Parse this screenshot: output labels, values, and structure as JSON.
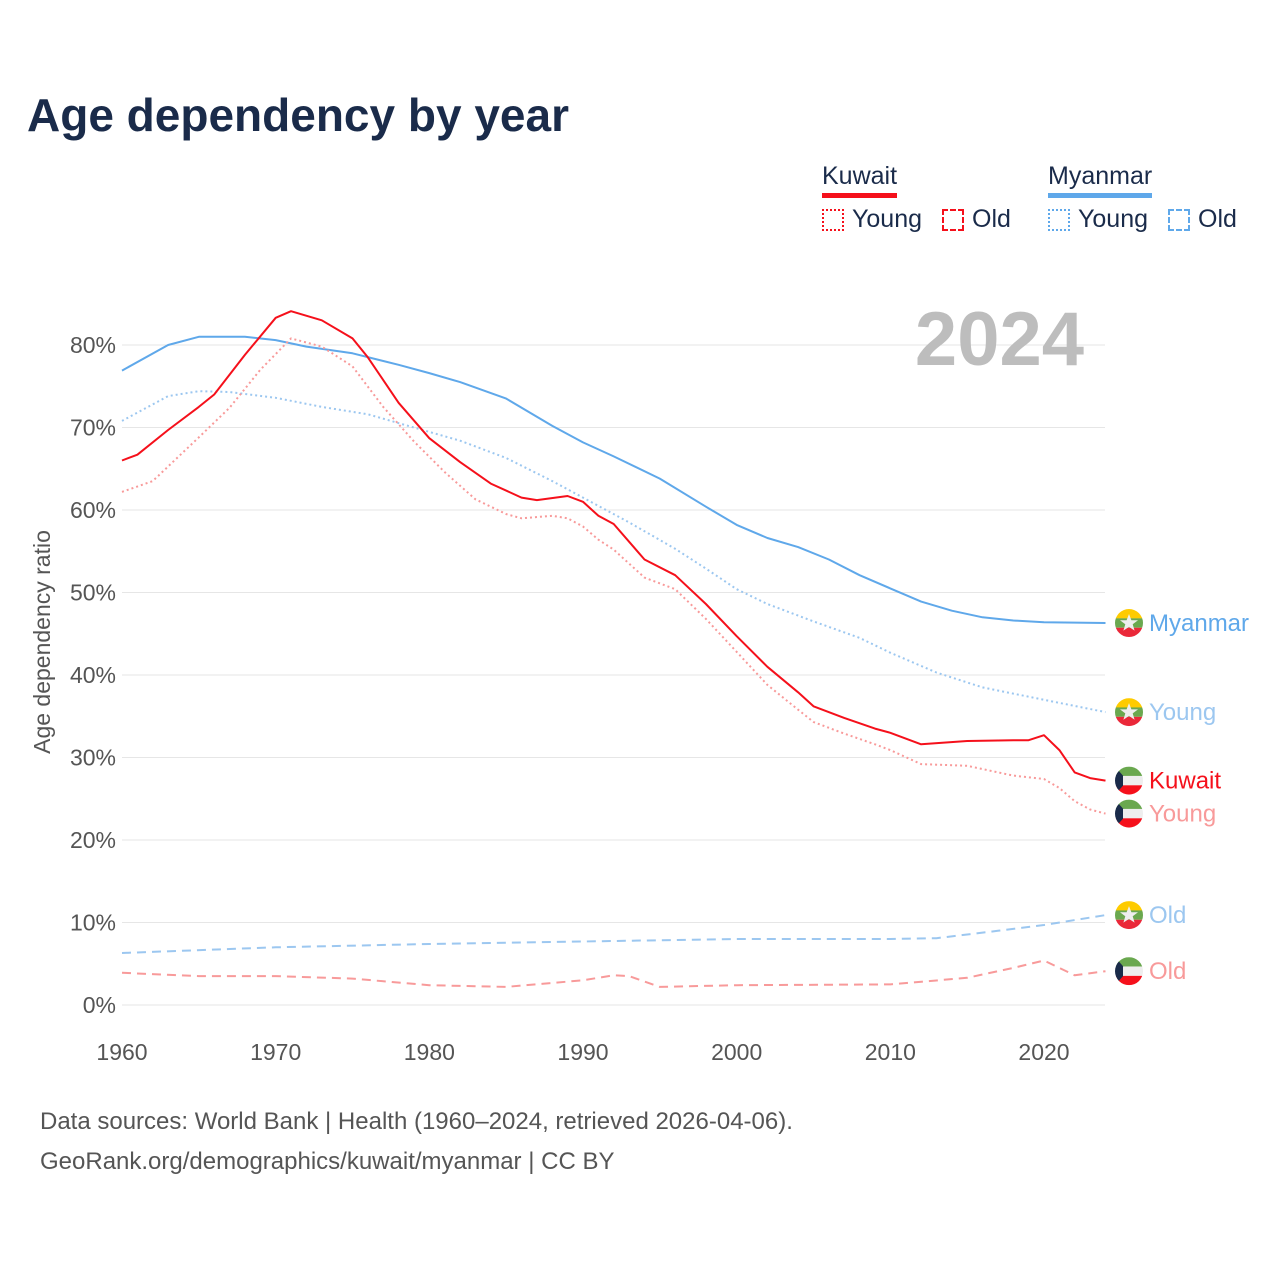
{
  "title": "Age dependency by year",
  "year_display": "2024",
  "legend": {
    "countries": [
      {
        "name": "Kuwait",
        "color": "#f5101b",
        "young_color": "#f5101b",
        "items": [
          "Young",
          "Old"
        ]
      },
      {
        "name": "Myanmar",
        "color": "#5fa8ea",
        "young_color": "#5fa8ea",
        "items": [
          "Young",
          "Old"
        ]
      }
    ]
  },
  "footer": {
    "line1": "Data sources: World Bank | Health (1960–2024, retrieved 2026-04-06).",
    "line2": "GeoRank.org/demographics/kuwait/myanmar | CC BY"
  },
  "chart_data": {
    "type": "line",
    "title": "Age dependency by year",
    "xlabel": "",
    "ylabel": "Age dependency ratio",
    "xlim": [
      1960,
      2024
    ],
    "ylim": [
      0,
      85
    ],
    "x_ticks": [
      1960,
      1970,
      1980,
      1990,
      2000,
      2010,
      2020
    ],
    "y_ticks": [
      0,
      10,
      20,
      30,
      40,
      50,
      60,
      70,
      80
    ],
    "y_tick_labels": [
      "0%",
      "10%",
      "20%",
      "30%",
      "40%",
      "50%",
      "60%",
      "70%",
      "80%"
    ],
    "grid": true,
    "series": [
      {
        "name": "Myanmar",
        "label": "Myanmar",
        "country": "Myanmar",
        "style": "solid",
        "color": "#5fa8ea",
        "x": [
          1960,
          1963,
          1965,
          1968,
          1970,
          1972,
          1975,
          1978,
          1980,
          1982,
          1985,
          1988,
          1990,
          1992,
          1995,
          1998,
          2000,
          2002,
          2004,
          2006,
          2008,
          2010,
          2012,
          2014,
          2016,
          2018,
          2020,
          2024
        ],
        "y": [
          76.9,
          80,
          81,
          81,
          80.6,
          79.8,
          79,
          77.6,
          76.6,
          75.5,
          73.5,
          70.2,
          68.2,
          66.5,
          63.8,
          60.4,
          58.2,
          56.6,
          55.5,
          54,
          52.1,
          50.5,
          48.9,
          47.8,
          47,
          46.6,
          46.4,
          46.3
        ]
      },
      {
        "name": "Myanmar Young",
        "label": "Young",
        "country": "Myanmar",
        "style": "dotted",
        "color": "#9cc7f0",
        "x": [
          1960,
          1963,
          1965,
          1967,
          1970,
          1973,
          1976,
          1979,
          1982,
          1985,
          1988,
          1990,
          1993,
          1996,
          1998,
          2000,
          2002,
          2005,
          2008,
          2010,
          2013,
          2016,
          2020,
          2024
        ],
        "y": [
          70.8,
          73.8,
          74.4,
          74.3,
          73.6,
          72.5,
          71.6,
          70,
          68.4,
          66.3,
          63.5,
          61.5,
          58.5,
          55.3,
          52.9,
          50.4,
          48.6,
          46.5,
          44.5,
          42.7,
          40.3,
          38.5,
          37,
          35.5
        ]
      },
      {
        "name": "Myanmar Old",
        "label": "Old",
        "country": "Myanmar",
        "style": "dashed",
        "color": "#9cc7f0",
        "x": [
          1960,
          1970,
          1980,
          1990,
          2000,
          2010,
          2013,
          2017,
          2020,
          2024
        ],
        "y": [
          6.3,
          7,
          7.4,
          7.7,
          8,
          8,
          8.1,
          9,
          9.7,
          10.9
        ]
      },
      {
        "name": "Kuwait",
        "label": "Kuwait",
        "country": "Kuwait",
        "style": "solid",
        "color": "#f5101b",
        "x": [
          1960,
          1961,
          1963,
          1965,
          1966,
          1968,
          1970,
          1971,
          1973,
          1975,
          1976,
          1978,
          1980,
          1982,
          1984,
          1986,
          1987,
          1989,
          1990,
          1991,
          1992,
          1994,
          1996,
          1998,
          2000,
          2002,
          2004,
          2005,
          2007,
          2009,
          2010,
          2012,
          2015,
          2018,
          2019,
          2020,
          2021,
          2022,
          2023,
          2024
        ],
        "y": [
          66,
          66.7,
          69.7,
          72.5,
          74,
          78.8,
          83.3,
          84.1,
          83,
          80.8,
          78.5,
          73,
          68.7,
          65.8,
          63.2,
          61.5,
          61.2,
          61.7,
          61,
          59.3,
          58.3,
          54,
          52.1,
          48.6,
          44.7,
          41,
          37.9,
          36.2,
          34.8,
          33.5,
          33,
          31.6,
          32,
          32.1,
          32.1,
          32.7,
          30.9,
          28.2,
          27.5,
          27.2
        ]
      },
      {
        "name": "Kuwait Young",
        "label": "Young",
        "country": "Kuwait",
        "style": "dotted",
        "color": "#f89a9a",
        "x": [
          1960,
          1962,
          1965,
          1967,
          1969,
          1971,
          1973,
          1975,
          1977,
          1979,
          1981,
          1983,
          1985,
          1986,
          1988,
          1989,
          1990,
          1991,
          1992,
          1994,
          1996,
          1998,
          2000,
          2002,
          2004,
          2005,
          2007,
          2009,
          2010,
          2012,
          2015,
          2018,
          2020,
          2021,
          2022,
          2023,
          2024
        ],
        "y": [
          62.2,
          63.5,
          68.8,
          72.4,
          77,
          80.8,
          79.8,
          77.4,
          72.5,
          68.3,
          64.6,
          61.3,
          59.5,
          59,
          59.3,
          59,
          58,
          56.4,
          55.2,
          51.8,
          50.4,
          46.8,
          42.8,
          38.8,
          35.8,
          34.3,
          32.9,
          31.6,
          30.9,
          29.2,
          29,
          27.8,
          27.4,
          26.3,
          24.7,
          23.7,
          23.2
        ]
      },
      {
        "name": "Kuwait Old",
        "label": "Old",
        "country": "Kuwait",
        "style": "dashed",
        "color": "#f89a9a",
        "x": [
          1960,
          1965,
          1970,
          1975,
          1980,
          1985,
          1990,
          1992,
          1993,
          1995,
          2000,
          2010,
          2015,
          2018,
          2020,
          2022,
          2024
        ],
        "y": [
          3.9,
          3.5,
          3.5,
          3.2,
          2.4,
          2.2,
          3,
          3.6,
          3.5,
          2.2,
          2.4,
          2.5,
          3.3,
          4.5,
          5.4,
          3.6,
          4.1
        ]
      }
    ]
  }
}
